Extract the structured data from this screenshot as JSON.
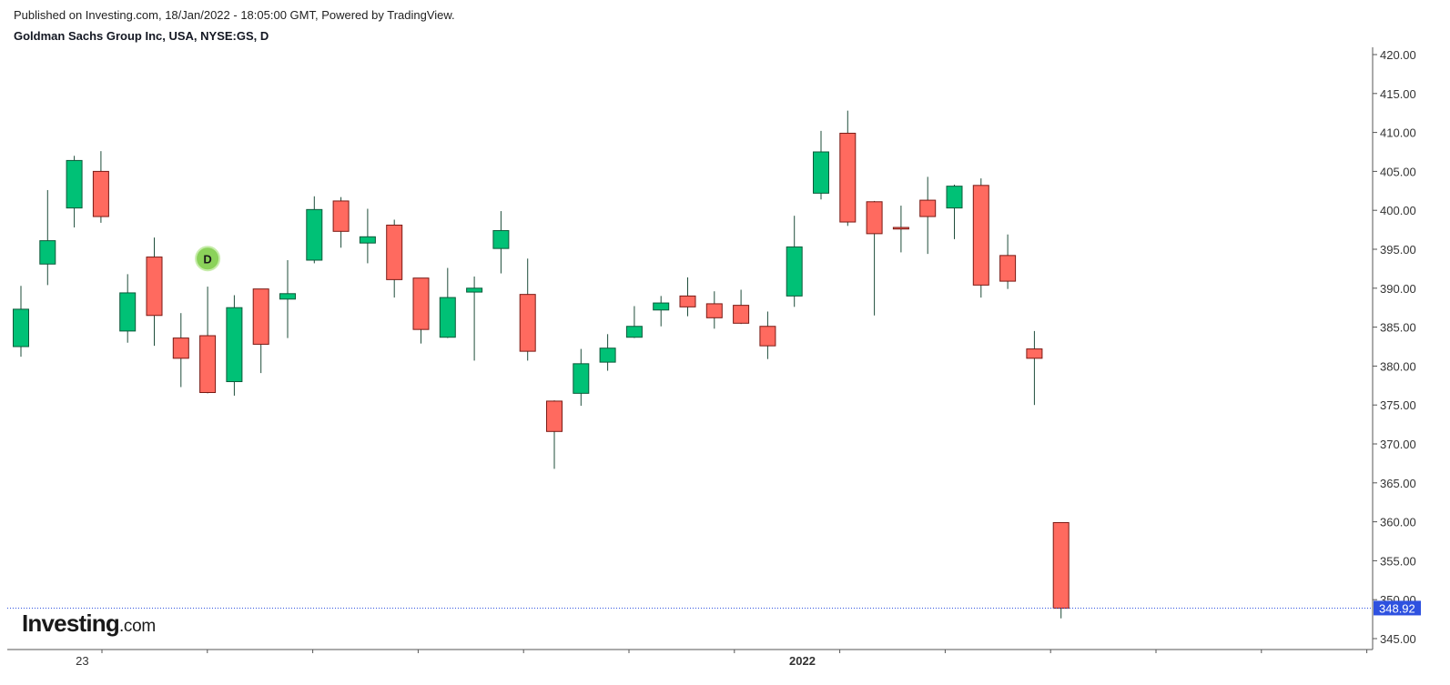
{
  "header": {
    "published": "Published on Investing.com, 18/Jan/2022 - 18:05:00 GMT, Powered by TradingView.",
    "symbol": "Goldman Sachs Group Inc, USA, NYSE:GS, D"
  },
  "logo": {
    "brand": "Investing",
    "suffix": ".com"
  },
  "colors": {
    "up": "#00c176",
    "down": "#ff6a5f",
    "wick": "#1e4d3a",
    "down_border": "#7a1a14",
    "up_border": "#0c5a3a",
    "axis": "#555555",
    "last_price": "#2e51e0",
    "marker": "#8bd25a"
  },
  "chart_data": {
    "type": "candlestick",
    "title": "Goldman Sachs Group Inc, USA, NYSE:GS, D",
    "y_axis": {
      "ylim": [
        345,
        420
      ],
      "ticks": [
        "345.00",
        "350.00",
        "355.00",
        "360.00",
        "365.00",
        "370.00",
        "375.00",
        "380.00",
        "385.00",
        "390.00",
        "395.00",
        "400.00",
        "405.00",
        "410.00",
        "415.00",
        "420.00"
      ],
      "position": "right"
    },
    "x_axis": {
      "labels": [
        {
          "text": "23",
          "bar": 2.3
        },
        {
          "text": "2022",
          "bar": 29.3
        }
      ]
    },
    "last_price": {
      "value": 348.92,
      "label": "348.92"
    },
    "marker": {
      "text": "D",
      "bar": 7,
      "price": 393.8
    },
    "candles": [
      {
        "o": 382.5,
        "h": 390.3,
        "l": 381.2,
        "c": 387.3
      },
      {
        "o": 393.1,
        "h": 402.6,
        "l": 390.4,
        "c": 396.1
      },
      {
        "o": 400.3,
        "h": 407.0,
        "l": 397.8,
        "c": 406.4
      },
      {
        "o": 405.0,
        "h": 407.6,
        "l": 398.4,
        "c": 399.2
      },
      {
        "o": 384.5,
        "h": 391.8,
        "l": 383.0,
        "c": 389.4
      },
      {
        "o": 394.0,
        "h": 396.5,
        "l": 382.6,
        "c": 386.5
      },
      {
        "o": 383.6,
        "h": 386.8,
        "l": 377.3,
        "c": 381.0
      },
      {
        "o": 383.9,
        "h": 390.2,
        "l": 376.5,
        "c": 376.6
      },
      {
        "o": 378.0,
        "h": 389.1,
        "l": 376.2,
        "c": 387.5
      },
      {
        "o": 389.9,
        "h": 389.9,
        "l": 379.1,
        "c": 382.8
      },
      {
        "o": 388.6,
        "h": 393.6,
        "l": 383.6,
        "c": 389.3
      },
      {
        "o": 393.6,
        "h": 401.8,
        "l": 393.2,
        "c": 400.1
      },
      {
        "o": 401.2,
        "h": 401.7,
        "l": 395.2,
        "c": 397.3
      },
      {
        "o": 395.8,
        "h": 400.2,
        "l": 393.2,
        "c": 396.6
      },
      {
        "o": 398.1,
        "h": 398.8,
        "l": 388.8,
        "c": 391.1
      },
      {
        "o": 391.3,
        "h": 391.3,
        "l": 382.9,
        "c": 384.7
      },
      {
        "o": 383.7,
        "h": 392.6,
        "l": 383.6,
        "c": 388.8
      },
      {
        "o": 389.5,
        "h": 391.5,
        "l": 380.7,
        "c": 390.0
      },
      {
        "o": 395.1,
        "h": 399.9,
        "l": 391.9,
        "c": 397.4
      },
      {
        "o": 389.2,
        "h": 393.8,
        "l": 380.7,
        "c": 381.9
      },
      {
        "o": 375.5,
        "h": 375.6,
        "l": 366.8,
        "c": 371.6
      },
      {
        "o": 376.5,
        "h": 382.2,
        "l": 374.9,
        "c": 380.3
      },
      {
        "o": 380.5,
        "h": 384.1,
        "l": 379.4,
        "c": 382.3
      },
      {
        "o": 383.7,
        "h": 387.7,
        "l": 383.6,
        "c": 385.1
      },
      {
        "o": 387.2,
        "h": 389.0,
        "l": 385.1,
        "c": 388.1
      },
      {
        "o": 389.0,
        "h": 391.4,
        "l": 386.4,
        "c": 387.6
      },
      {
        "o": 388.0,
        "h": 389.6,
        "l": 384.8,
        "c": 386.2
      },
      {
        "o": 387.8,
        "h": 389.8,
        "l": 385.4,
        "c": 385.5
      },
      {
        "o": 385.1,
        "h": 387.0,
        "l": 380.9,
        "c": 382.6
      },
      {
        "o": 389.0,
        "h": 399.3,
        "l": 387.6,
        "c": 395.3
      },
      {
        "o": 402.2,
        "h": 410.2,
        "l": 401.4,
        "c": 407.5
      },
      {
        "o": 409.9,
        "h": 412.8,
        "l": 398.0,
        "c": 398.5
      },
      {
        "o": 401.1,
        "h": 401.2,
        "l": 386.5,
        "c": 397.0
      },
      {
        "o": 397.8,
        "h": 400.6,
        "l": 394.6,
        "c": 397.6
      },
      {
        "o": 401.3,
        "h": 404.3,
        "l": 394.4,
        "c": 399.2
      },
      {
        "o": 400.3,
        "h": 403.3,
        "l": 396.3,
        "c": 403.1
      },
      {
        "o": 403.2,
        "h": 404.1,
        "l": 388.8,
        "c": 390.4
      },
      {
        "o": 394.2,
        "h": 396.9,
        "l": 389.9,
        "c": 390.9
      },
      {
        "o": 382.2,
        "h": 384.5,
        "l": 375.0,
        "c": 381.0
      },
      {
        "o": 359.9,
        "h": 359.9,
        "l": 347.6,
        "c": 348.9
      }
    ]
  }
}
